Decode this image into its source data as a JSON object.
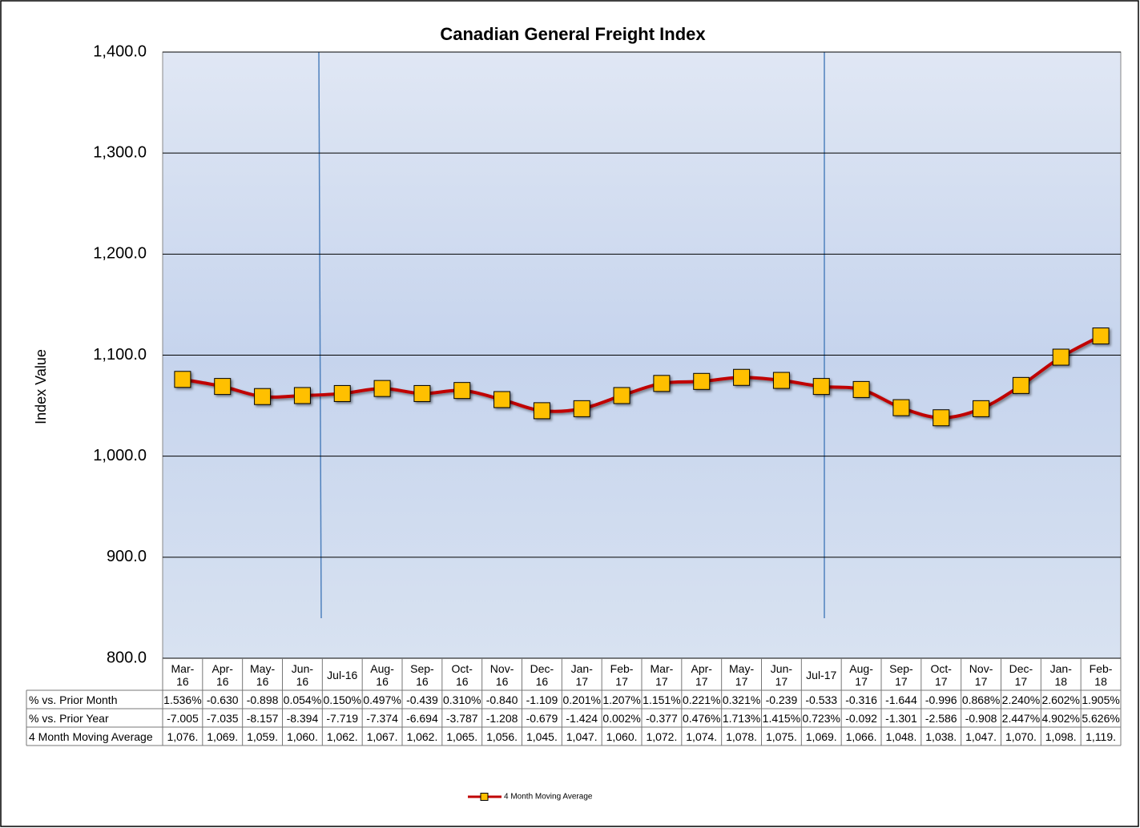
{
  "chart_data": {
    "type": "line",
    "title": "Canadian General Freight Index",
    "y_label": "Index Value",
    "categories": [
      "Mar-16",
      "Apr-16",
      "May-16",
      "Jun-16",
      "Jul-16",
      "Aug-16",
      "Sep-16",
      "Oct-16",
      "Nov-16",
      "Dec-16",
      "Jan-17",
      "Feb-17",
      "Mar-17",
      "Apr-17",
      "May-17",
      "Jun-17",
      "Jul-17",
      "Aug-17",
      "Sep-17",
      "Oct-17",
      "Nov-17",
      "Dec-17",
      "Jan-18",
      "Feb-18"
    ],
    "series": [
      {
        "name": "4 Month Moving Average",
        "color": "#c00000",
        "marker_color": "#ffc000",
        "values": [
          1076,
          1069,
          1059,
          1060,
          1062,
          1067,
          1062,
          1065,
          1056,
          1045,
          1047,
          1060,
          1072,
          1074,
          1078,
          1075,
          1069,
          1066,
          1048,
          1038,
          1047,
          1070,
          1098,
          1119
        ],
        "value_labels": [
          "1,076.",
          "1,069.",
          "1,059.",
          "1,060.",
          "1,062.",
          "1,067.",
          "1,062.",
          "1,065.",
          "1,056.",
          "1,045.",
          "1,047.",
          "1,060.",
          "1,072.",
          "1,074.",
          "1,078.",
          "1,075.",
          "1,069.",
          "1,066.",
          "1,048.",
          "1,038.",
          "1,047.",
          "1,070.",
          "1,098.",
          "1,119."
        ]
      }
    ],
    "table_rows": [
      {
        "name": "% vs. Prior Month",
        "cells": [
          "1.536%",
          "-0.630",
          "-0.898",
          "0.054%",
          "0.150%",
          "0.497%",
          "-0.439",
          "0.310%",
          "-0.840",
          "-1.109",
          "0.201%",
          "1.207%",
          "1.151%",
          "0.221%",
          "0.321%",
          "-0.239",
          "-0.533",
          "-0.316",
          "-1.644",
          "-0.996",
          "0.868%",
          "2.240%",
          "2.602%",
          "1.905%"
        ]
      },
      {
        "name": "% vs. Prior Year",
        "cells": [
          "-7.005",
          "-7.035",
          "-8.157",
          "-8.394",
          "-7.719",
          "-7.374",
          "-6.694",
          "-3.787",
          "-1.208",
          "-0.679",
          "-1.424",
          "0.002%",
          "-0.377",
          "0.476%",
          "1.713%",
          "1.415%",
          "0.723%",
          "-0.092",
          "-1.301",
          "-2.586",
          "-0.908",
          "2.447%",
          "4.902%",
          "5.626%"
        ]
      }
    ],
    "ylim": [
      800,
      1400
    ],
    "yticks": [
      {
        "value": 800,
        "label": "800.0"
      },
      {
        "value": 900,
        "label": "900.0"
      },
      {
        "value": 1000,
        "label": "1,000.0"
      },
      {
        "value": 1100,
        "label": "1,100.0"
      },
      {
        "value": 1200,
        "label": "1,200.0"
      },
      {
        "value": 1300,
        "label": "1,300.0"
      },
      {
        "value": 1400,
        "label": "1,400.0"
      }
    ],
    "grid": true,
    "legend": "bottom"
  }
}
